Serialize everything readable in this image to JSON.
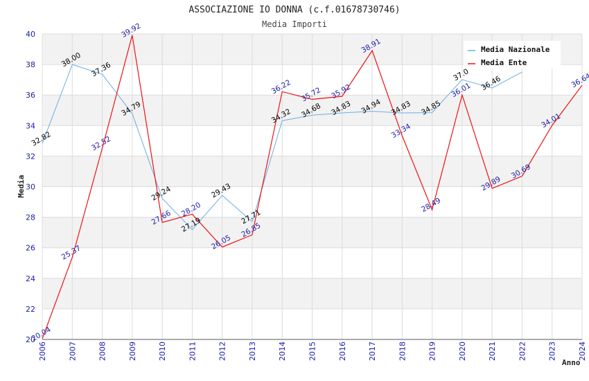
{
  "chart_data": {
    "type": "line",
    "title": "ASSOCIAZIONE IO DONNA (c.f.01678730746)",
    "subtitle": "Media Importi",
    "xlabel": "Anno",
    "ylabel": "Media",
    "ylim": [
      20,
      40
    ],
    "yticks": [
      "20",
      "22",
      "24",
      "26",
      "28",
      "30",
      "32",
      "34",
      "36",
      "38",
      "40"
    ],
    "categories": [
      "2006",
      "2007",
      "2008",
      "2009",
      "2010",
      "2011",
      "2012",
      "2013",
      "2014",
      "2015",
      "2016",
      "2017",
      "2018",
      "2019",
      "2020",
      "2021",
      "2022",
      "2023",
      "2024"
    ],
    "series": [
      {
        "name": "Media Nazionale",
        "color": "#6aaee6",
        "values": [
          32.82,
          38.0,
          37.36,
          34.79,
          29.24,
          27.19,
          29.43,
          27.71,
          34.32,
          34.68,
          34.83,
          34.94,
          34.83,
          34.85,
          37.01,
          36.46,
          37.51,
          null,
          null
        ],
        "labels": [
          "32.82",
          "38.00",
          "37.36",
          "34.79",
          "29.24",
          "27.19",
          "29.43",
          "27.71",
          "34.32",
          "34.68",
          "34.83",
          "34.94",
          "34.83",
          "34.85",
          "37.0",
          "36.46",
          "",
          "",
          ""
        ]
      },
      {
        "name": "Media Ente",
        "color": "#ee1111",
        "values": [
          20.04,
          25.37,
          32.52,
          39.92,
          27.66,
          28.2,
          26.05,
          26.85,
          36.22,
          35.72,
          35.92,
          38.91,
          33.34,
          28.49,
          36.01,
          29.89,
          30.69,
          34.01,
          36.64
        ],
        "labels": [
          "20.04",
          "25.37",
          "32.52",
          "39.92",
          "27.66",
          "28.20",
          "26.05",
          "26.85",
          "36.22",
          "35.72",
          "35.92",
          "38.91",
          "33.34",
          "28.49",
          "36.01",
          "29.89",
          "30.69",
          "34.01",
          "36.64"
        ]
      }
    ],
    "legend": "top-right",
    "grid": true
  }
}
